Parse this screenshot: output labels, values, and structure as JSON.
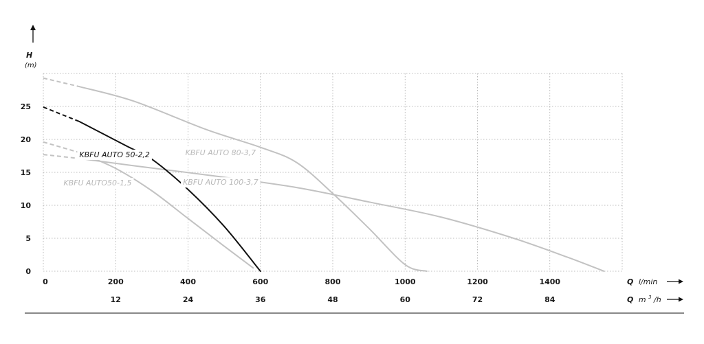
{
  "chart_data": {
    "type": "line",
    "y_axis": {
      "label": "H",
      "unit": "(m)",
      "ticks": [
        0,
        5,
        10,
        15,
        20,
        25
      ],
      "range": [
        0,
        30
      ]
    },
    "x_axis": {
      "primary": {
        "label": "Q",
        "unit": "l/min",
        "ticks": [
          0,
          200,
          400,
          600,
          800,
          1000,
          1200,
          1400
        ],
        "range": [
          0,
          1600
        ]
      },
      "secondary": {
        "label": "Q",
        "unit": "m",
        "unit_sup": "3",
        "unit_tail": "/h",
        "ticks": [
          12,
          24,
          36,
          48,
          60,
          72,
          84
        ]
      }
    },
    "grid": true,
    "series": [
      {
        "name": "KBFU AUTO 50-2,2",
        "color": "#111111",
        "emphasis": true,
        "label_pos": [
          197,
          17.3
        ],
        "dashed_points": [
          [
            0,
            24.9
          ],
          [
            100,
            22.7
          ]
        ],
        "points": [
          [
            100,
            22.7
          ],
          [
            230,
            19.0
          ],
          [
            300,
            17.0
          ],
          [
            400,
            12.4
          ],
          [
            500,
            6.8
          ],
          [
            600,
            0
          ]
        ]
      },
      {
        "name": "KBFU AUTO50-1,5",
        "color": "#c2c2c2",
        "emphasis": false,
        "label_pos": [
          150,
          13.0
        ],
        "dashed_points": [
          [
            0,
            19.6
          ],
          [
            100,
            18.0
          ]
        ],
        "points": [
          [
            100,
            18.0
          ],
          [
            200,
            15.6
          ],
          [
            300,
            12.2
          ],
          [
            400,
            8.0
          ],
          [
            500,
            3.8
          ],
          [
            580,
            0.5
          ]
        ]
      },
      {
        "name": "KBFU AUTO 80-3,7",
        "color": "#c2c2c2",
        "emphasis": false,
        "label_pos": [
          490,
          17.6
        ],
        "dashed_points": [
          [
            0,
            29.3
          ],
          [
            100,
            28.0
          ]
        ],
        "points": [
          [
            100,
            28.0
          ],
          [
            250,
            25.8
          ],
          [
            450,
            21.5
          ],
          [
            600,
            18.8
          ],
          [
            700,
            16.5
          ],
          [
            800,
            11.8
          ],
          [
            900,
            6.5
          ],
          [
            1000,
            1.0
          ],
          [
            1060,
            0
          ]
        ]
      },
      {
        "name": "KBFU AUTO 100-3,7",
        "color": "#c2c2c2",
        "emphasis": false,
        "label_pos": [
          490,
          13.1
        ],
        "dashed_points": [
          [
            0,
            17.7
          ],
          [
            100,
            17.1
          ]
        ],
        "points": [
          [
            100,
            17.1
          ],
          [
            250,
            16.0
          ],
          [
            480,
            14.4
          ],
          [
            700,
            12.7
          ],
          [
            900,
            10.5
          ],
          [
            1100,
            8.2
          ],
          [
            1300,
            5.0
          ],
          [
            1450,
            2.1
          ],
          [
            1550,
            0
          ]
        ]
      }
    ]
  }
}
